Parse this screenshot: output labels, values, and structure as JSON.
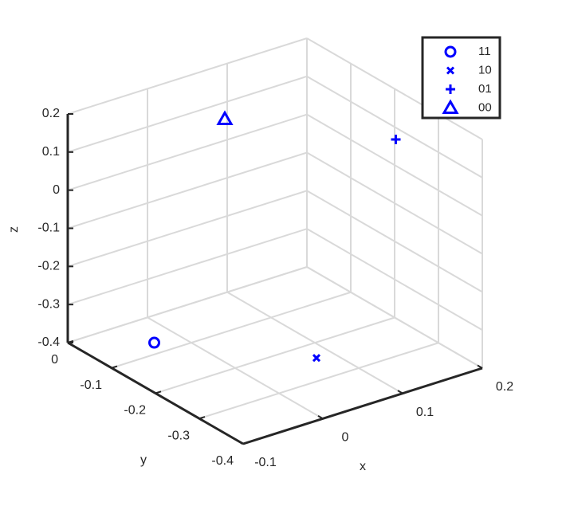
{
  "chart_data": {
    "type": "scatter3d",
    "xlabel": "x",
    "ylabel": "y",
    "zlabel": "z",
    "xlim": [
      -0.1,
      0.2
    ],
    "xticks": [
      -0.1,
      0,
      0.1,
      0.2
    ],
    "ylim": [
      -0.4,
      0
    ],
    "yticks": [
      -0.4,
      -0.3,
      -0.2,
      -0.1,
      0
    ],
    "zlim": [
      -0.4,
      0.2
    ],
    "zticks": [
      -0.4,
      -0.3,
      -0.2,
      -0.1,
      0,
      0.1,
      0.2
    ],
    "grid": true,
    "legend": "top-right",
    "series": [
      {
        "name": "11",
        "marker": "o",
        "color": "#0000ff",
        "x": [
          -0.03
        ],
        "y": [
          -0.07
        ],
        "z": [
          -0.4
        ]
      },
      {
        "name": "10",
        "marker": "x",
        "color": "#0000ff",
        "x": [
          0.08
        ],
        "y": [
          -0.24
        ],
        "z": [
          -0.4
        ]
      },
      {
        "name": "01",
        "marker": "+",
        "color": "#0000ff",
        "x": [
          0.13
        ],
        "y": [
          -0.33
        ],
        "z": [
          0.2
        ]
      },
      {
        "name": "00",
        "marker": "^",
        "color": "#0000ff",
        "x": [
          0.02
        ],
        "y": [
          -0.14
        ],
        "z": [
          0.2
        ]
      }
    ]
  }
}
